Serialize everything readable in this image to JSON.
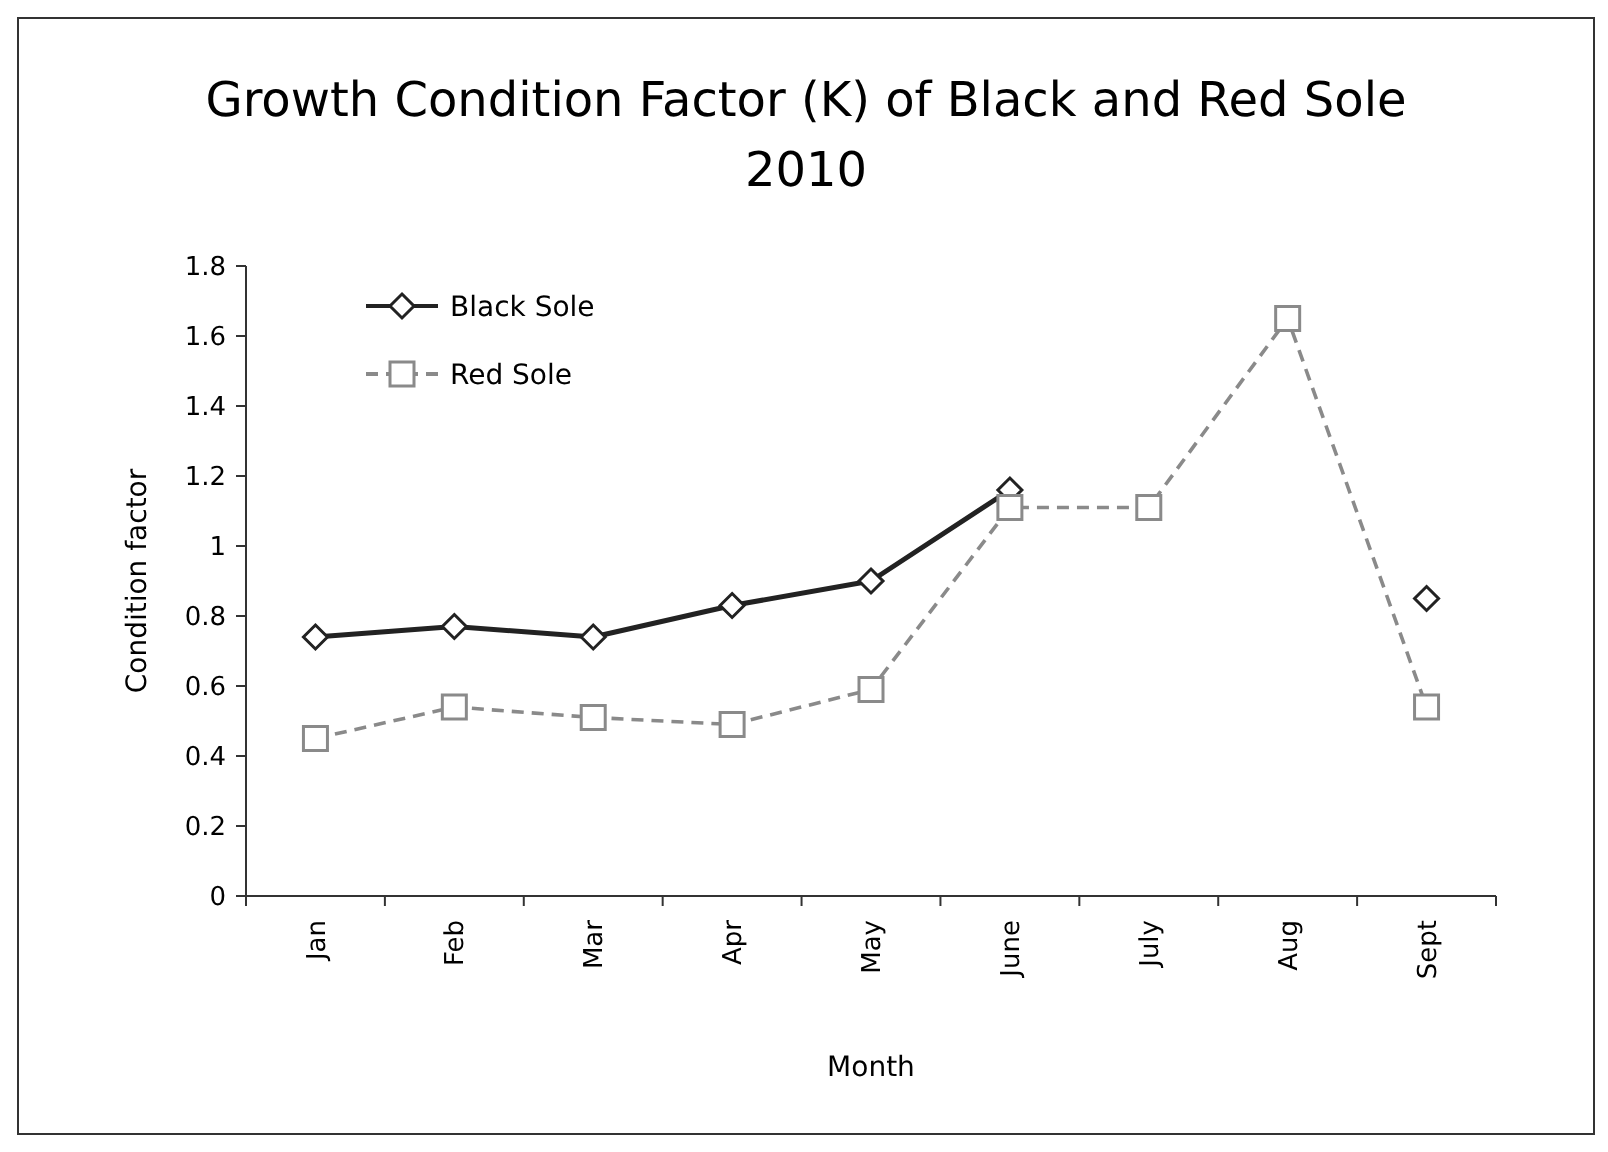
{
  "chart_data": {
    "type": "line",
    "title": "Growth Condition Factor (K) of Black and Red Sole",
    "subtitle": "2010",
    "xlabel": "Month",
    "ylabel": "Condition factor",
    "categories": [
      "Jan",
      "Feb",
      "Mar",
      "Apr",
      "May",
      "June",
      "July",
      "Aug",
      "Sept"
    ],
    "ylim": [
      0,
      1.8
    ],
    "yticks": [
      0,
      {
        "value": 0.2,
        "label": "0.2"
      },
      {
        "value": 0.4,
        "label": "0.4"
      },
      {
        "value": 0.6,
        "label": "0.6"
      },
      {
        "value": 0.8,
        "label": "0.8"
      },
      1,
      {
        "value": 1.2,
        "label": "1.2"
      },
      {
        "value": 1.4,
        "label": "1.4"
      },
      {
        "value": 1.6,
        "label": "1.6"
      },
      {
        "value": 1.8,
        "label": "1.8"
      }
    ],
    "grid": false,
    "legend": "top left",
    "series": [
      {
        "name": "Black Sole",
        "color": "#222222",
        "marker": "diamond",
        "line_style": "solid",
        "values": [
          0.74,
          0.77,
          0.74,
          0.83,
          0.9,
          1.16,
          null,
          null,
          0.85
        ]
      },
      {
        "name": "Red Sole",
        "color": "#8a8a8a",
        "marker": "square",
        "line_style": "dashed",
        "values": [
          0.45,
          0.54,
          0.51,
          0.49,
          0.59,
          1.11,
          1.11,
          1.65,
          0.54
        ]
      }
    ]
  }
}
